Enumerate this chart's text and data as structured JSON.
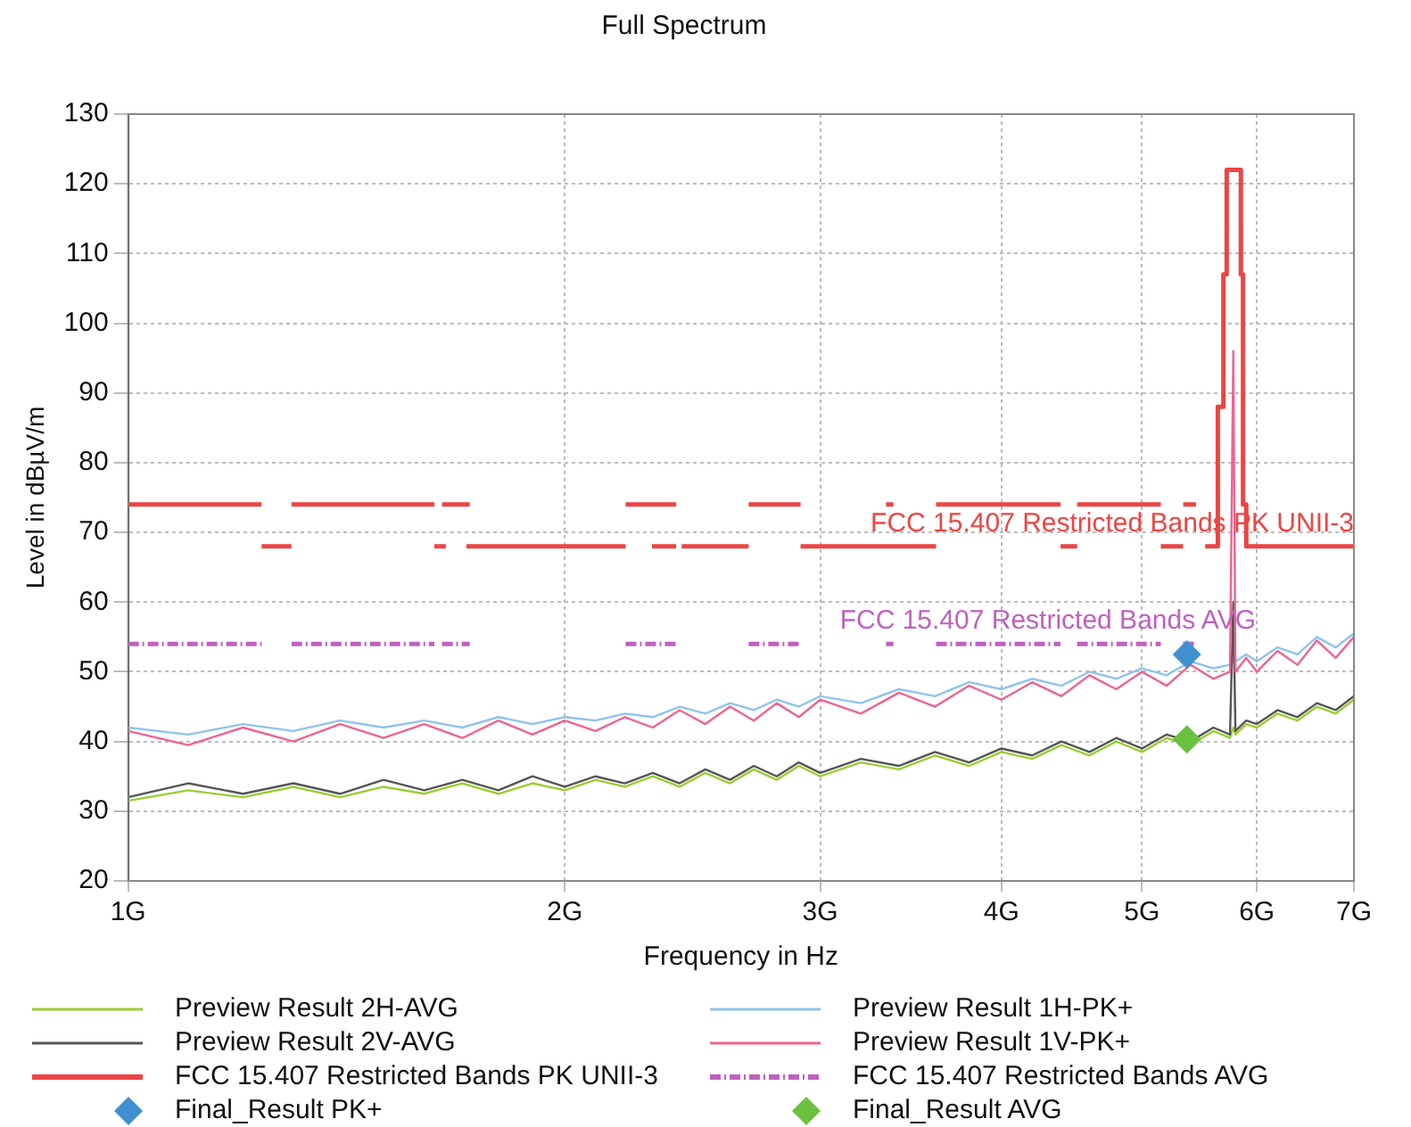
{
  "chart_data": {
    "type": "line",
    "title": "Full Spectrum",
    "xlabel": "Frequency in Hz",
    "ylabel": "Level in dBµV/m",
    "log": "x",
    "grid": true,
    "legend": "bottom",
    "xlim": [
      1,
      7
    ],
    "xticks": [
      {
        "value": 1,
        "label": "1G"
      },
      {
        "value": 2,
        "label": "2G"
      },
      {
        "value": 3,
        "label": "3G"
      },
      {
        "value": 4,
        "label": "4G"
      },
      {
        "value": 5,
        "label": "5G"
      },
      {
        "value": 6,
        "label": "6G"
      },
      {
        "value": 7,
        "label": "7G"
      }
    ],
    "ylim": [
      20,
      130
    ],
    "yticks": [
      20,
      30,
      40,
      50,
      60,
      70,
      80,
      90,
      100,
      110,
      120,
      130
    ],
    "annotations": [
      "FCC 15.407 Restricted Bands PK UNII-3",
      "FCC 15.407 Restricted Bands AVG"
    ],
    "series": [
      {
        "name": "Preview Result 2H-AVG",
        "color": "#9acd32",
        "marker": "none",
        "x": [
          1.0,
          1.1,
          1.2,
          1.3,
          1.4,
          1.5,
          1.6,
          1.7,
          1.8,
          1.9,
          2.0,
          2.1,
          2.2,
          2.3,
          2.4,
          2.5,
          2.6,
          2.7,
          2.8,
          2.9,
          3.0,
          3.2,
          3.4,
          3.6,
          3.8,
          4.0,
          4.2,
          4.4,
          4.6,
          4.8,
          5.0,
          5.2,
          5.4,
          5.6,
          5.75,
          5.78,
          5.8,
          5.9,
          6.0,
          6.2,
          6.4,
          6.6,
          6.8,
          7.0
        ],
        "values": [
          31.5,
          33,
          32,
          33.5,
          32,
          33.5,
          32.5,
          34,
          32.5,
          34,
          33,
          34.5,
          33.5,
          35,
          33.5,
          35.5,
          34,
          36,
          34.5,
          36.5,
          35,
          37,
          36,
          38,
          36.5,
          38.5,
          37.5,
          39.5,
          38,
          40,
          38.5,
          40.5,
          39.5,
          41.5,
          40.5,
          42,
          41,
          42.5,
          42,
          44,
          43,
          45,
          44,
          46
        ]
      },
      {
        "name": "Preview Result 1H-PK+",
        "color": "#8fc3ee",
        "marker": "none",
        "x": [
          1.0,
          1.1,
          1.2,
          1.3,
          1.4,
          1.5,
          1.6,
          1.7,
          1.8,
          1.9,
          2.0,
          2.1,
          2.2,
          2.3,
          2.4,
          2.5,
          2.6,
          2.7,
          2.8,
          2.9,
          3.0,
          3.2,
          3.4,
          3.6,
          3.8,
          4.0,
          4.2,
          4.4,
          4.6,
          4.8,
          5.0,
          5.2,
          5.4,
          5.6,
          5.75,
          5.78,
          5.8,
          5.9,
          6.0,
          6.2,
          6.4,
          6.6,
          6.8,
          7.0
        ],
        "values": [
          42,
          41,
          42.5,
          41.5,
          43,
          42,
          43,
          42,
          43.5,
          42.5,
          43.5,
          43,
          44,
          43.5,
          45,
          44,
          45.5,
          44.5,
          46,
          45,
          46.5,
          45.5,
          47.5,
          46.5,
          48.5,
          47.5,
          49,
          48,
          50,
          49,
          50.5,
          49.5,
          51.5,
          50.5,
          51,
          51.5,
          51.5,
          52.5,
          51.5,
          53.5,
          52.5,
          55,
          53.5,
          55.5
        ]
      },
      {
        "name": "Preview Result 2V-AVG",
        "color": "#555555",
        "marker": "none",
        "x": [
          1.0,
          1.1,
          1.2,
          1.3,
          1.4,
          1.5,
          1.6,
          1.7,
          1.8,
          1.9,
          2.0,
          2.1,
          2.2,
          2.3,
          2.4,
          2.5,
          2.6,
          2.7,
          2.8,
          2.9,
          3.0,
          3.2,
          3.4,
          3.6,
          3.8,
          4.0,
          4.2,
          4.4,
          4.6,
          4.8,
          5.0,
          5.2,
          5.4,
          5.6,
          5.75,
          5.78,
          5.8,
          5.9,
          6.0,
          6.2,
          6.4,
          6.6,
          6.8,
          7.0
        ],
        "values": [
          32,
          34,
          32.5,
          34,
          32.5,
          34.5,
          33,
          34.5,
          33,
          35,
          33.5,
          35,
          34,
          35.5,
          34,
          36,
          34.5,
          36.5,
          35,
          37,
          35.5,
          37.5,
          36.5,
          38.5,
          37,
          39,
          38,
          40,
          38.5,
          40.5,
          39,
          41,
          40,
          42,
          41,
          60,
          41.5,
          43,
          42.5,
          44.5,
          43.5,
          45.5,
          44.5,
          46.5
        ]
      },
      {
        "name": "Preview Result 1V-PK+",
        "color": "#f06292",
        "marker": "none",
        "x": [
          1.0,
          1.1,
          1.2,
          1.3,
          1.4,
          1.5,
          1.6,
          1.7,
          1.8,
          1.9,
          2.0,
          2.1,
          2.2,
          2.3,
          2.4,
          2.5,
          2.6,
          2.7,
          2.8,
          2.9,
          3.0,
          3.2,
          3.4,
          3.6,
          3.8,
          4.0,
          4.2,
          4.4,
          4.6,
          4.8,
          5.0,
          5.2,
          5.4,
          5.6,
          5.75,
          5.78,
          5.8,
          5.9,
          6.0,
          6.2,
          6.4,
          6.6,
          6.8,
          7.0
        ],
        "values": [
          41.5,
          39.5,
          42,
          40,
          42.5,
          40.5,
          42.5,
          40.5,
          43,
          41,
          43,
          41.5,
          43.5,
          42,
          44.5,
          42.5,
          45,
          43,
          45.5,
          43.5,
          46,
          44,
          47,
          45,
          48,
          46,
          48.5,
          46.5,
          49.5,
          47.5,
          50,
          48,
          51,
          49,
          50,
          96,
          50,
          52,
          50,
          53,
          51,
          54.5,
          52,
          55
        ]
      },
      {
        "name": "FCC 15.407 Restricted Bands PK UNII-3",
        "color": "#ee4444",
        "marker": "none",
        "line_style": "solid",
        "x": [
          1.0,
          1.236,
          null,
          1.296,
          1.626,
          null,
          1.646,
          1.72,
          null,
          2.203,
          2.387,
          null,
          2.678,
          2.908,
          null,
          3.331,
          3.37,
          null,
          3.606,
          4.394,
          null,
          4.511,
          5.152,
          null,
          5.338,
          5.448,
          null,
          1.236,
          1.296,
          null,
          1.626,
          1.656,
          null,
          1.711,
          2.203,
          null,
          2.297,
          2.387,
          null,
          2.408,
          2.678,
          null,
          2.908,
          3.606,
          null,
          4.394,
          4.511,
          null,
          5.152,
          5.338,
          null,
          5.528,
          5.64,
          5.64,
          5.69,
          5.69,
          5.72,
          5.72,
          5.85,
          5.85,
          5.87,
          5.87,
          5.9,
          5.9,
          7.0
        ],
        "values": [
          74,
          74,
          null,
          74,
          74,
          null,
          74,
          74,
          null,
          74,
          74,
          null,
          74,
          74,
          null,
          74,
          74,
          null,
          74,
          74,
          null,
          74,
          74,
          null,
          74,
          74,
          null,
          68,
          68,
          null,
          68,
          68,
          null,
          68,
          68,
          null,
          68,
          68,
          null,
          68,
          68,
          null,
          68,
          68,
          null,
          68,
          68,
          null,
          68,
          68,
          null,
          68,
          68,
          88,
          88,
          107,
          107,
          122,
          122,
          107,
          107,
          74,
          74,
          68,
          68
        ]
      },
      {
        "name": "FCC 15.407 Restricted Bands AVG",
        "color": "#c060c0",
        "marker": "none",
        "line_style": "dashed",
        "x": [
          1.0,
          1.236,
          null,
          1.296,
          1.626,
          null,
          1.646,
          1.72,
          null,
          2.203,
          2.387,
          null,
          2.678,
          2.908,
          null,
          3.331,
          3.37,
          null,
          3.606,
          4.394,
          null,
          4.511,
          5.152,
          null,
          5.338,
          5.448
        ],
        "values": [
          54,
          54,
          null,
          54,
          54,
          null,
          54,
          54,
          null,
          54,
          54,
          null,
          54,
          54,
          null,
          54,
          54,
          null,
          54,
          54,
          null,
          54,
          54,
          null,
          54,
          54
        ]
      },
      {
        "name": "Final_Result PK+",
        "type": "scatter",
        "color": "#4090d0",
        "marker": "diamond",
        "x": [
          5.37
        ],
        "values": [
          52.5
        ]
      },
      {
        "name": "Final_Result AVG",
        "type": "scatter",
        "color": "#6cc040",
        "marker": "diamond",
        "x": [
          5.37
        ],
        "values": [
          40.3
        ]
      }
    ]
  }
}
